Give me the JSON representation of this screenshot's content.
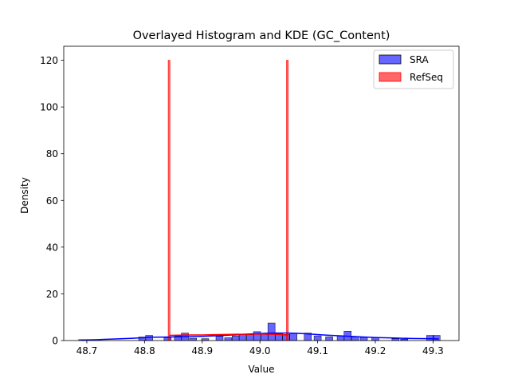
{
  "chart_data": {
    "type": "bar",
    "title": "Overlayed Histogram and KDE (GC_Content)",
    "xlabel": "Value",
    "ylabel": "Density",
    "xlim": [
      48.66,
      49.345
    ],
    "ylim": [
      0,
      126
    ],
    "xticks": [
      48.7,
      48.8,
      48.9,
      49.0,
      49.1,
      49.2,
      49.3
    ],
    "yticks": [
      0,
      20,
      40,
      60,
      80,
      100,
      120
    ],
    "xtick_labels": [
      "48.7",
      "48.8",
      "48.9",
      "49.0",
      "49.1",
      "49.2",
      "49.3"
    ],
    "ytick_labels": [
      "0",
      "20",
      "40",
      "60",
      "80",
      "100",
      "120"
    ],
    "grid": false,
    "legend_position": "top-right",
    "series": [
      {
        "name": "SRA",
        "color": "#0000ff",
        "bin_width": 0.0124,
        "bins": [
          {
            "x": 48.692,
            "y": 0.4
          },
          {
            "x": 48.796,
            "y": 1.5
          },
          {
            "x": 48.808,
            "y": 2.2
          },
          {
            "x": 48.84,
            "y": 1.2
          },
          {
            "x": 48.858,
            "y": 2.0
          },
          {
            "x": 48.87,
            "y": 3.2
          },
          {
            "x": 48.884,
            "y": 1.0
          },
          {
            "x": 48.905,
            "y": 0.8
          },
          {
            "x": 48.93,
            "y": 1.8
          },
          {
            "x": 48.945,
            "y": 1.2
          },
          {
            "x": 48.958,
            "y": 2.0
          },
          {
            "x": 48.97,
            "y": 2.6
          },
          {
            "x": 48.983,
            "y": 2.5
          },
          {
            "x": 48.995,
            "y": 3.8
          },
          {
            "x": 49.008,
            "y": 2.8
          },
          {
            "x": 49.02,
            "y": 7.5
          },
          {
            "x": 49.033,
            "y": 3.0
          },
          {
            "x": 49.045,
            "y": 2.6
          },
          {
            "x": 49.058,
            "y": 3.2
          },
          {
            "x": 49.083,
            "y": 3.2
          },
          {
            "x": 49.1,
            "y": 2.0
          },
          {
            "x": 49.12,
            "y": 1.6
          },
          {
            "x": 49.14,
            "y": 2.0
          },
          {
            "x": 49.152,
            "y": 4.0
          },
          {
            "x": 49.165,
            "y": 1.5
          },
          {
            "x": 49.18,
            "y": 1.3
          },
          {
            "x": 49.2,
            "y": 1.2
          },
          {
            "x": 49.235,
            "y": 0.8
          },
          {
            "x": 49.25,
            "y": 0.6
          },
          {
            "x": 49.295,
            "y": 2.2
          },
          {
            "x": 49.306,
            "y": 2.2
          }
        ],
        "kde": {
          "x": [
            48.69,
            48.72,
            48.75,
            48.78,
            48.81,
            48.84,
            48.87,
            48.9,
            48.93,
            48.96,
            48.99,
            49.02,
            49.05,
            49.08,
            49.11,
            49.14,
            49.17,
            49.2,
            49.23,
            49.26,
            49.29,
            49.31
          ],
          "y": [
            0.2,
            0.4,
            0.7,
            1.0,
            1.4,
            1.5,
            1.6,
            1.8,
            2.1,
            2.5,
            2.9,
            3.2,
            3.2,
            2.9,
            2.4,
            2.0,
            1.6,
            1.3,
            1.1,
            0.9,
            0.8,
            0.7
          ]
        }
      },
      {
        "name": "RefSeq",
        "color": "#ff0000",
        "bin_width": 0.003,
        "bins": [
          {
            "x": 48.8425,
            "y": 120
          },
          {
            "x": 49.0475,
            "y": 120
          }
        ],
        "kde": {
          "x": [
            48.843,
            48.86,
            48.88,
            48.9,
            48.92,
            48.94,
            48.96,
            48.98,
            49.0,
            49.02,
            49.04,
            49.048
          ],
          "y": [
            2.2,
            2.3,
            2.4,
            2.4,
            2.5,
            2.6,
            2.7,
            2.7,
            2.8,
            2.7,
            2.5,
            2.3
          ]
        }
      }
    ]
  }
}
